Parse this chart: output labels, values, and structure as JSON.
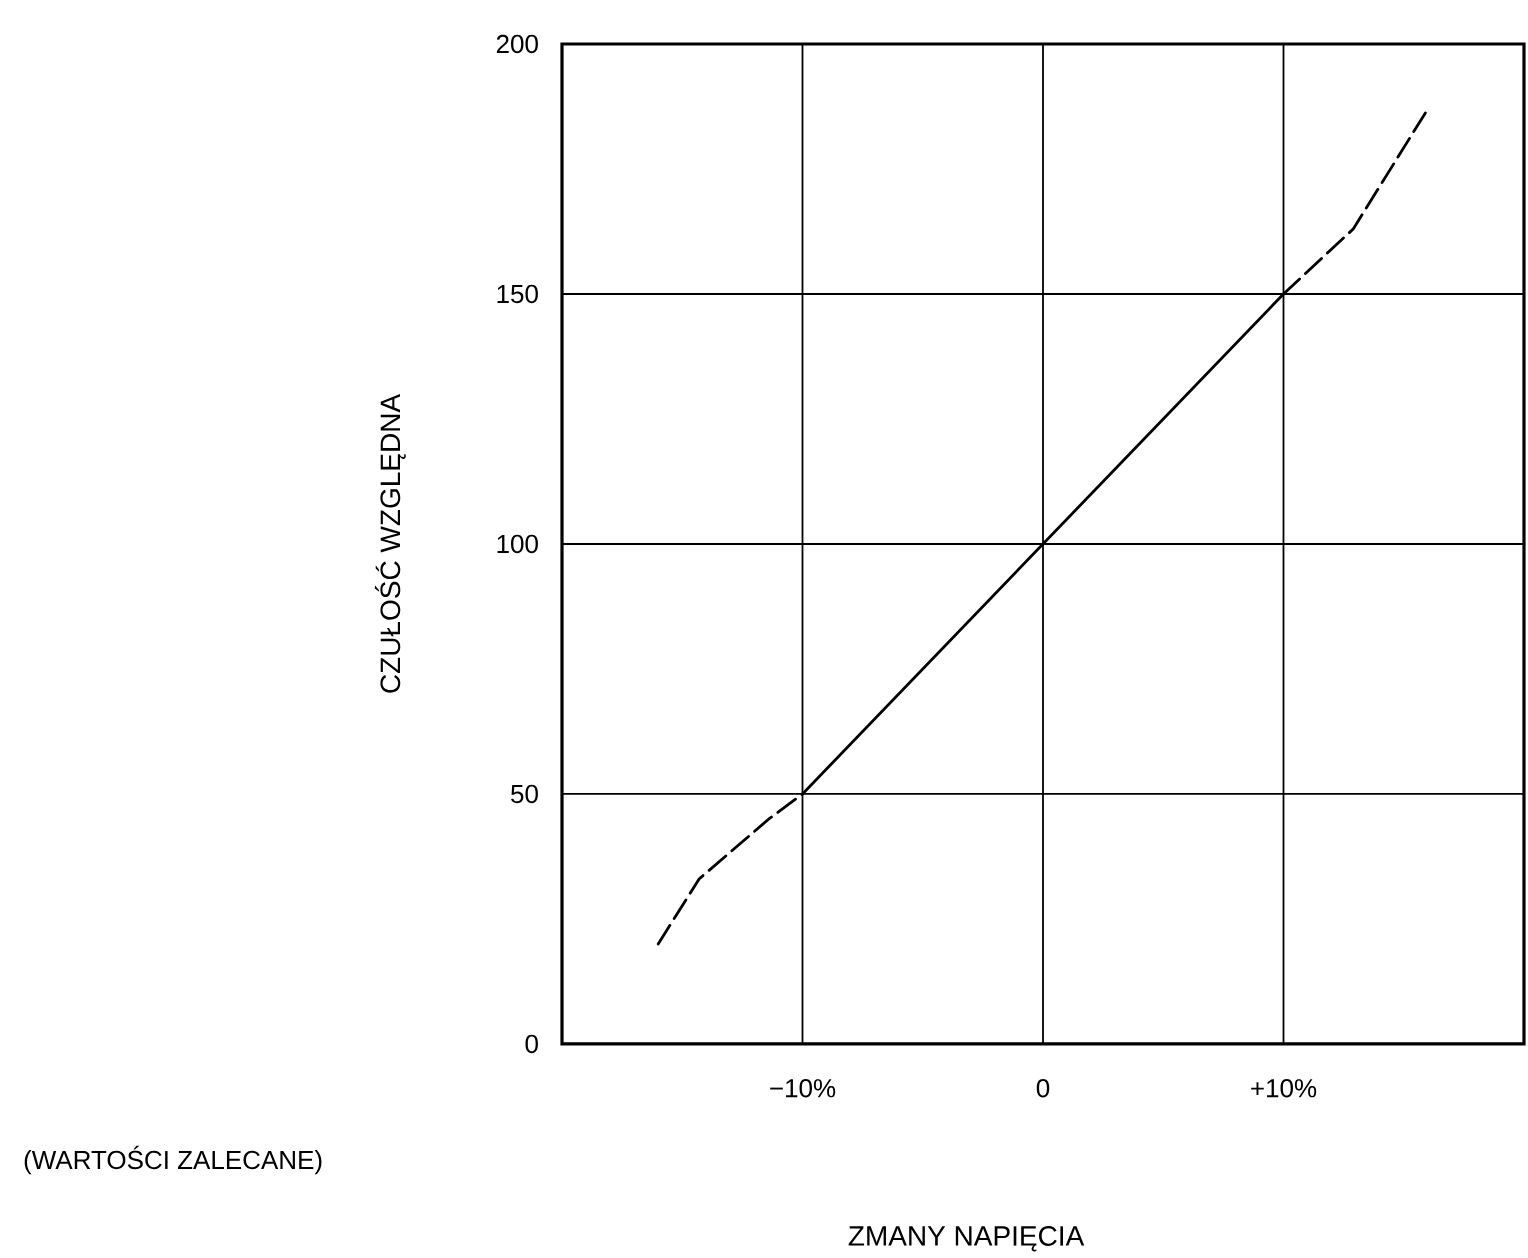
{
  "chart_data": {
    "type": "line",
    "xlabel": "ZMANY NAPIĘCIA",
    "ylabel": "CZUŁOŚĆ WZGLĘDNA",
    "annotations": [
      "(WARTOŚCI ZALECANE)"
    ],
    "xlim": [
      -20,
      20
    ],
    "ylim": [
      0,
      200
    ],
    "xticks": [
      {
        "value": -10,
        "label": "−10%"
      },
      0,
      {
        "value": 10,
        "label": "+10%"
      }
    ],
    "yticks": [
      0,
      50,
      100,
      150,
      200
    ],
    "grid": true,
    "series": [
      {
        "color": "#000000",
        "line_style": "dashed",
        "x": [
          -16,
          -14.3,
          -11.4,
          -10
        ],
        "values": [
          20,
          33,
          45,
          50
        ]
      },
      {
        "color": "#000000",
        "line_style": "solid",
        "x": [
          -10,
          10
        ],
        "values": [
          50,
          150
        ]
      },
      {
        "color": "#000000",
        "line_style": "dashed",
        "x": [
          10,
          12.9,
          16
        ],
        "values": [
          150,
          163,
          187
        ]
      }
    ]
  }
}
